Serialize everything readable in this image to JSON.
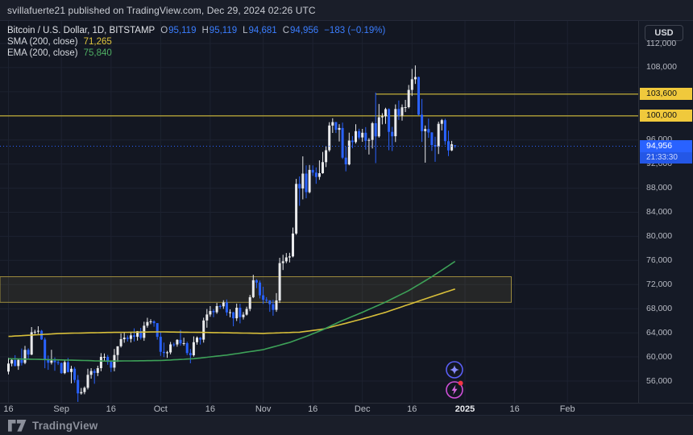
{
  "header": {
    "published_text": "svillafuerte21 published on TradingView.com, Dec 29, 2024 02:26 UTC"
  },
  "legend": {
    "symbol": "Bitcoin / U.S. Dollar, 1D, BITSTAMP",
    "tokens": [
      {
        "k": "O",
        "v": "95,119"
      },
      {
        "k": "H",
        "v": "95,119"
      },
      {
        "k": "L",
        "v": "94,681"
      },
      {
        "k": "C",
        "v": "94,956"
      }
    ],
    "change": "−183 (−0.19%)",
    "sma": {
      "label": "SMA (200, close)",
      "value": "71,265"
    },
    "ema": {
      "label": "EMA (200, close)",
      "value": "75,840"
    }
  },
  "price_scale": {
    "currency_button": "USD",
    "ticks": [
      {
        "label": "112,000",
        "price": 112000
      },
      {
        "label": "108,000",
        "price": 108000
      },
      {
        "label": "96,000",
        "price": 96000
      },
      {
        "label": "92,000",
        "price": 92000
      },
      {
        "label": "88,000",
        "price": 88000
      },
      {
        "label": "84,000",
        "price": 84000
      },
      {
        "label": "80,000",
        "price": 80000
      },
      {
        "label": "76,000",
        "price": 76000
      },
      {
        "label": "72,000",
        "price": 72000
      },
      {
        "label": "68,000",
        "price": 68000
      },
      {
        "label": "64,000",
        "price": 64000
      },
      {
        "label": "60,000",
        "price": 60000
      },
      {
        "label": "56,000",
        "price": 56000
      }
    ],
    "level_labels": [
      {
        "label": "103,600",
        "price": 103600
      },
      {
        "label": "100,000",
        "price": 100000
      }
    ],
    "current": {
      "label": "94,956",
      "countdown": "21:33:30",
      "price": 94956
    }
  },
  "time_scale": {
    "ticks": [
      {
        "label": "16",
        "index": 0
      },
      {
        "label": "Sep",
        "index": 16
      },
      {
        "label": "16",
        "index": 31
      },
      {
        "label": "Oct",
        "index": 46
      },
      {
        "label": "16",
        "index": 61
      },
      {
        "label": "Nov",
        "index": 77
      },
      {
        "label": "16",
        "index": 92
      },
      {
        "label": "Dec",
        "index": 107
      },
      {
        "label": "16",
        "index": 122
      },
      {
        "label": "2025",
        "index": 138,
        "emphasis": true
      },
      {
        "label": "16",
        "index": 153
      },
      {
        "label": "Feb",
        "index": 169
      }
    ]
  },
  "footer": {
    "brand": "TradingView"
  },
  "fab": [
    {
      "icon": "sparkle-ai"
    },
    {
      "icon": "lightning-alert",
      "has_notification": true
    }
  ],
  "chart_data": {
    "type": "candlestick",
    "title": "Bitcoin / U.S. Dollar, 1D, BITSTAMP",
    "interval": "1D",
    "start_date": "2024-08-16",
    "end_date": "2024-12-29",
    "visible_price_range": [
      52400,
      115700
    ],
    "grid_step": 4000,
    "axis_top_price": 112000,
    "current_price": 94956,
    "candles": [
      [
        57560,
        59850,
        57110,
        58890
      ],
      [
        58890,
        59690,
        58430,
        59480
      ],
      [
        59480,
        60280,
        58430,
        58480
      ],
      [
        58480,
        59610,
        57860,
        59500
      ],
      [
        59500,
        61390,
        58580,
        59010
      ],
      [
        59010,
        61830,
        58790,
        61170
      ],
      [
        61170,
        61420,
        59750,
        60380
      ],
      [
        60380,
        64950,
        60280,
        64090
      ],
      [
        64090,
        64510,
        63590,
        64180
      ],
      [
        64180,
        65080,
        63830,
        64330
      ],
      [
        64330,
        64480,
        62830,
        62880
      ],
      [
        62880,
        63210,
        58120,
        59500
      ],
      [
        59500,
        60230,
        57860,
        59030
      ],
      [
        59030,
        61180,
        58740,
        59390
      ],
      [
        59390,
        59910,
        57710,
        59120
      ],
      [
        59120,
        59430,
        58650,
        58970
      ],
      [
        58970,
        59070,
        57201,
        57300
      ],
      [
        57300,
        59400,
        57128,
        59120
      ],
      [
        59120,
        59815,
        57415,
        57490
      ],
      [
        57490,
        58520,
        55606,
        58030
      ],
      [
        58030,
        58330,
        55700,
        56180
      ],
      [
        56180,
        56990,
        52530,
        53950
      ],
      [
        53950,
        54850,
        53740,
        54160
      ],
      [
        54160,
        55100,
        53800,
        54870
      ],
      [
        54870,
        58040,
        54590,
        57020
      ],
      [
        57020,
        58130,
        56380,
        57650
      ],
      [
        57650,
        57970,
        55540,
        57340
      ],
      [
        57340,
        58530,
        56810,
        58130
      ],
      [
        58130,
        60620,
        57630,
        60000
      ],
      [
        60000,
        60580,
        59410,
        60010
      ],
      [
        60010,
        60330,
        58690,
        59180
      ],
      [
        59180,
        59200,
        57490,
        58210
      ],
      [
        58210,
        61320,
        57610,
        60310
      ],
      [
        60310,
        61770,
        59180,
        61760
      ],
      [
        61760,
        63890,
        61560,
        62940
      ],
      [
        62940,
        64130,
        62350,
        63190
      ],
      [
        63190,
        63560,
        62560,
        62990
      ],
      [
        62990,
        64000,
        62380,
        63580
      ],
      [
        63580,
        64740,
        62560,
        63340
      ],
      [
        63340,
        64300,
        62700,
        64270
      ],
      [
        64270,
        64820,
        62860,
        63160
      ],
      [
        63160,
        65840,
        62670,
        65180
      ],
      [
        65180,
        66490,
        64850,
        65790
      ],
      [
        65790,
        66260,
        65430,
        65890
      ],
      [
        65890,
        66070,
        65010,
        65600
      ],
      [
        65600,
        65620,
        62860,
        63330
      ],
      [
        63330,
        64120,
        60170,
        60840
      ],
      [
        60840,
        62370,
        59960,
        60650
      ],
      [
        60650,
        61000,
        59830,
        60750
      ],
      [
        60750,
        62480,
        60420,
        62080
      ],
      [
        62080,
        62370,
        61690,
        62060
      ],
      [
        62060,
        62940,
        61690,
        62820
      ],
      [
        62820,
        64470,
        61870,
        62230
      ],
      [
        62230,
        63190,
        61860,
        62280
      ],
      [
        62280,
        62530,
        60290,
        60630
      ],
      [
        60630,
        61310,
        58940,
        60280
      ],
      [
        60280,
        63400,
        60050,
        62440
      ],
      [
        62440,
        63400,
        62030,
        63190
      ],
      [
        63190,
        63290,
        62050,
        62870
      ],
      [
        62870,
        66500,
        62370,
        66050
      ],
      [
        66050,
        67950,
        64840,
        67040
      ],
      [
        67040,
        68420,
        66660,
        67610
      ],
      [
        67610,
        67930,
        66580,
        67410
      ],
      [
        67410,
        68950,
        67150,
        68430
      ],
      [
        68430,
        68690,
        67960,
        68390
      ],
      [
        68390,
        69400,
        67970,
        69030
      ],
      [
        69030,
        69520,
        66840,
        67380
      ],
      [
        67380,
        67890,
        66570,
        67410
      ],
      [
        67410,
        67460,
        65080,
        66410
      ],
      [
        66410,
        68840,
        65960,
        68160
      ],
      [
        68160,
        68810,
        65560,
        66600
      ],
      [
        66600,
        67440,
        66210,
        67010
      ],
      [
        67010,
        68330,
        66860,
        67960
      ],
      [
        67960,
        70280,
        67590,
        69910
      ],
      [
        69910,
        73620,
        69750,
        72720
      ],
      [
        72720,
        72910,
        71410,
        72330
      ],
      [
        72330,
        72660,
        69690,
        70220
      ],
      [
        70220,
        71630,
        68790,
        69480
      ],
      [
        69480,
        69910,
        68980,
        69370
      ],
      [
        69370,
        69410,
        67480,
        68740
      ],
      [
        68740,
        69470,
        66830,
        67810
      ],
      [
        67810,
        70580,
        67480,
        69370
      ],
      [
        69370,
        76440,
        68950,
        75570
      ],
      [
        75570,
        76940,
        74420,
        75860
      ],
      [
        75860,
        77240,
        75550,
        76510
      ],
      [
        76510,
        77270,
        75670,
        76680
      ],
      [
        76680,
        81460,
        76510,
        80470
      ],
      [
        80470,
        89530,
        80240,
        88700
      ],
      [
        88700,
        89940,
        85070,
        87950
      ],
      [
        87950,
        93270,
        86140,
        90410
      ],
      [
        90410,
        91790,
        86330,
        87330
      ],
      [
        87330,
        91850,
        87120,
        91030
      ],
      [
        91030,
        91780,
        90020,
        90580
      ],
      [
        90580,
        91440,
        88720,
        89860
      ],
      [
        89860,
        92610,
        89380,
        90480
      ],
      [
        90480,
        94010,
        90370,
        92310
      ],
      [
        92310,
        94890,
        91500,
        94290
      ],
      [
        94290,
        98940,
        94040,
        98390
      ],
      [
        98390,
        99590,
        97170,
        98960
      ],
      [
        98960,
        98990,
        97150,
        97690
      ],
      [
        97690,
        98620,
        95750,
        97980
      ],
      [
        97980,
        98870,
        92830,
        93060
      ],
      [
        93060,
        94900,
        90790,
        91950
      ],
      [
        91950,
        97210,
        91790,
        95900
      ],
      [
        95900,
        96640,
        94610,
        95650
      ],
      [
        95650,
        98590,
        95380,
        97460
      ],
      [
        97460,
        97860,
        96080,
        96410
      ],
      [
        96410,
        97830,
        95690,
        97190
      ],
      [
        97190,
        98130,
        94390,
        95860
      ],
      [
        95860,
        96300,
        93580,
        96000
      ],
      [
        96000,
        99000,
        94580,
        98770
      ],
      [
        98770,
        103850,
        92150,
        96590
      ],
      [
        96590,
        101960,
        96370,
        99760
      ],
      [
        99760,
        100440,
        98580,
        99920
      ],
      [
        99920,
        101350,
        98660,
        101110
      ],
      [
        101110,
        101240,
        94290,
        97340
      ],
      [
        97340,
        98160,
        94150,
        96610
      ],
      [
        96610,
        101890,
        95650,
        101130
      ],
      [
        101130,
        102540,
        99310,
        100040
      ],
      [
        100040,
        101890,
        99210,
        101420
      ],
      [
        101420,
        102650,
        100620,
        101440
      ],
      [
        101440,
        105120,
        101230,
        104300
      ],
      [
        104300,
        107790,
        103290,
        106060
      ],
      [
        106060,
        108360,
        105290,
        106440
      ],
      [
        106440,
        106480,
        100050,
        100190
      ],
      [
        100190,
        102800,
        95670,
        97460
      ],
      [
        97460,
        98390,
        92230,
        97810
      ],
      [
        97810,
        99540,
        96350,
        97240
      ],
      [
        97240,
        97290,
        94180,
        95160
      ],
      [
        95160,
        96540,
        92360,
        94880
      ],
      [
        94880,
        99040,
        93660,
        98670
      ],
      [
        98670,
        99480,
        97580,
        99270
      ],
      [
        99270,
        99520,
        95180,
        95790
      ],
      [
        95790,
        97540,
        93310,
        94270
      ],
      [
        94270,
        95840,
        94140,
        95280
      ],
      [
        95119,
        95119,
        94681,
        94956
      ]
    ],
    "sma_200": {
      "name": "SMA (200, close)",
      "last_value": 71265,
      "points": [
        [
          0,
          63400
        ],
        [
          16,
          63900
        ],
        [
          30,
          64050
        ],
        [
          46,
          64150
        ],
        [
          60,
          64050
        ],
        [
          77,
          63900
        ],
        [
          88,
          64100
        ],
        [
          95,
          64600
        ],
        [
          100,
          65300
        ],
        [
          107,
          66300
        ],
        [
          114,
          67400
        ],
        [
          121,
          68700
        ],
        [
          128,
          70000
        ],
        [
          135,
          71265
        ]
      ]
    },
    "ema_200": {
      "name": "EMA (200, close)",
      "last_value": 75840,
      "points": [
        [
          0,
          59700
        ],
        [
          16,
          59500
        ],
        [
          30,
          59300
        ],
        [
          46,
          59400
        ],
        [
          56,
          59700
        ],
        [
          66,
          60300
        ],
        [
          77,
          61200
        ],
        [
          85,
          62400
        ],
        [
          90,
          63400
        ],
        [
          95,
          64500
        ],
        [
          100,
          65800
        ],
        [
          107,
          67400
        ],
        [
          114,
          69100
        ],
        [
          121,
          71000
        ],
        [
          128,
          73300
        ],
        [
          135,
          75840
        ]
      ]
    },
    "horizontal_rays": [
      {
        "price": 103600,
        "start_index": 111,
        "from_left_edge": false
      },
      {
        "price": 100000,
        "start_index": 0,
        "from_left_edge": true
      }
    ],
    "box": {
      "price_top": 73300,
      "price_bottom": 69050,
      "from_left_edge": true,
      "end_index": 152
    },
    "colors": {
      "up": "#e9eaec",
      "down": "#2962ff",
      "sma": "#d8bf3a",
      "ema": "#3da158",
      "ray": "#b3a137",
      "box_fill": "rgba(200,180,90,0.10)",
      "box_stroke": "#9c8b3d",
      "current_line": "#2962ff",
      "grid": "#1d2230"
    }
  }
}
